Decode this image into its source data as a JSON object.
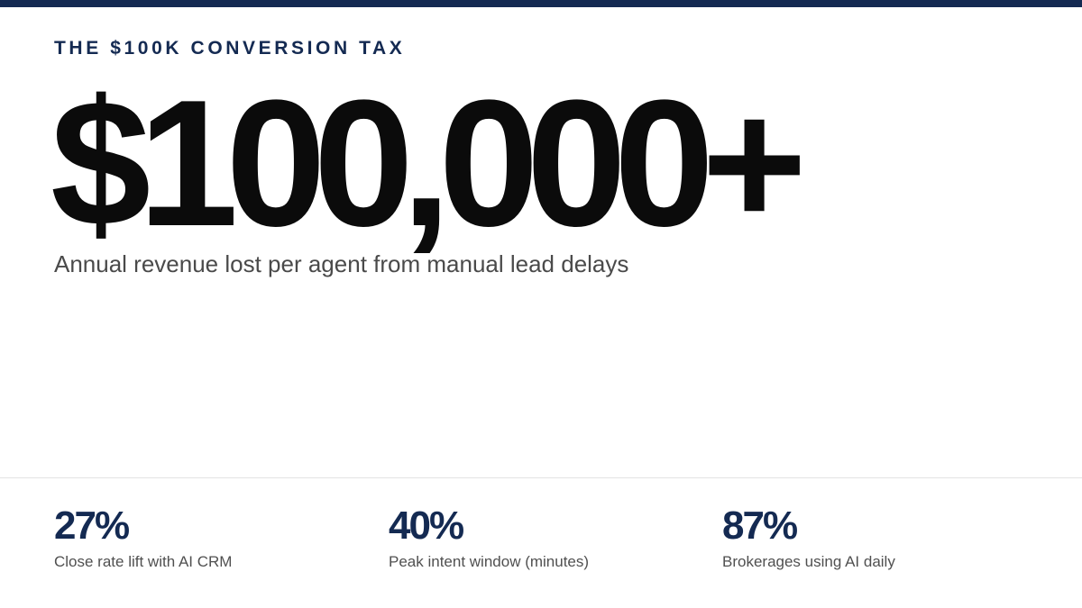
{
  "colors": {
    "accent": "#142a52",
    "hero_text": "#0b0b0b",
    "caption_text": "#4a4a4a",
    "divider": "#e3e3e3"
  },
  "header": {
    "eyebrow": "THE $100K CONVERSION TAX"
  },
  "hero": {
    "value": "$100,000+",
    "caption": "Annual revenue lost per agent from manual lead delays"
  },
  "stats": [
    {
      "value": "27%",
      "label": "Close rate lift with AI CRM"
    },
    {
      "value": "40%",
      "label": "Peak intent window (minutes)"
    },
    {
      "value": "87%",
      "label": "Brokerages using AI daily"
    }
  ]
}
